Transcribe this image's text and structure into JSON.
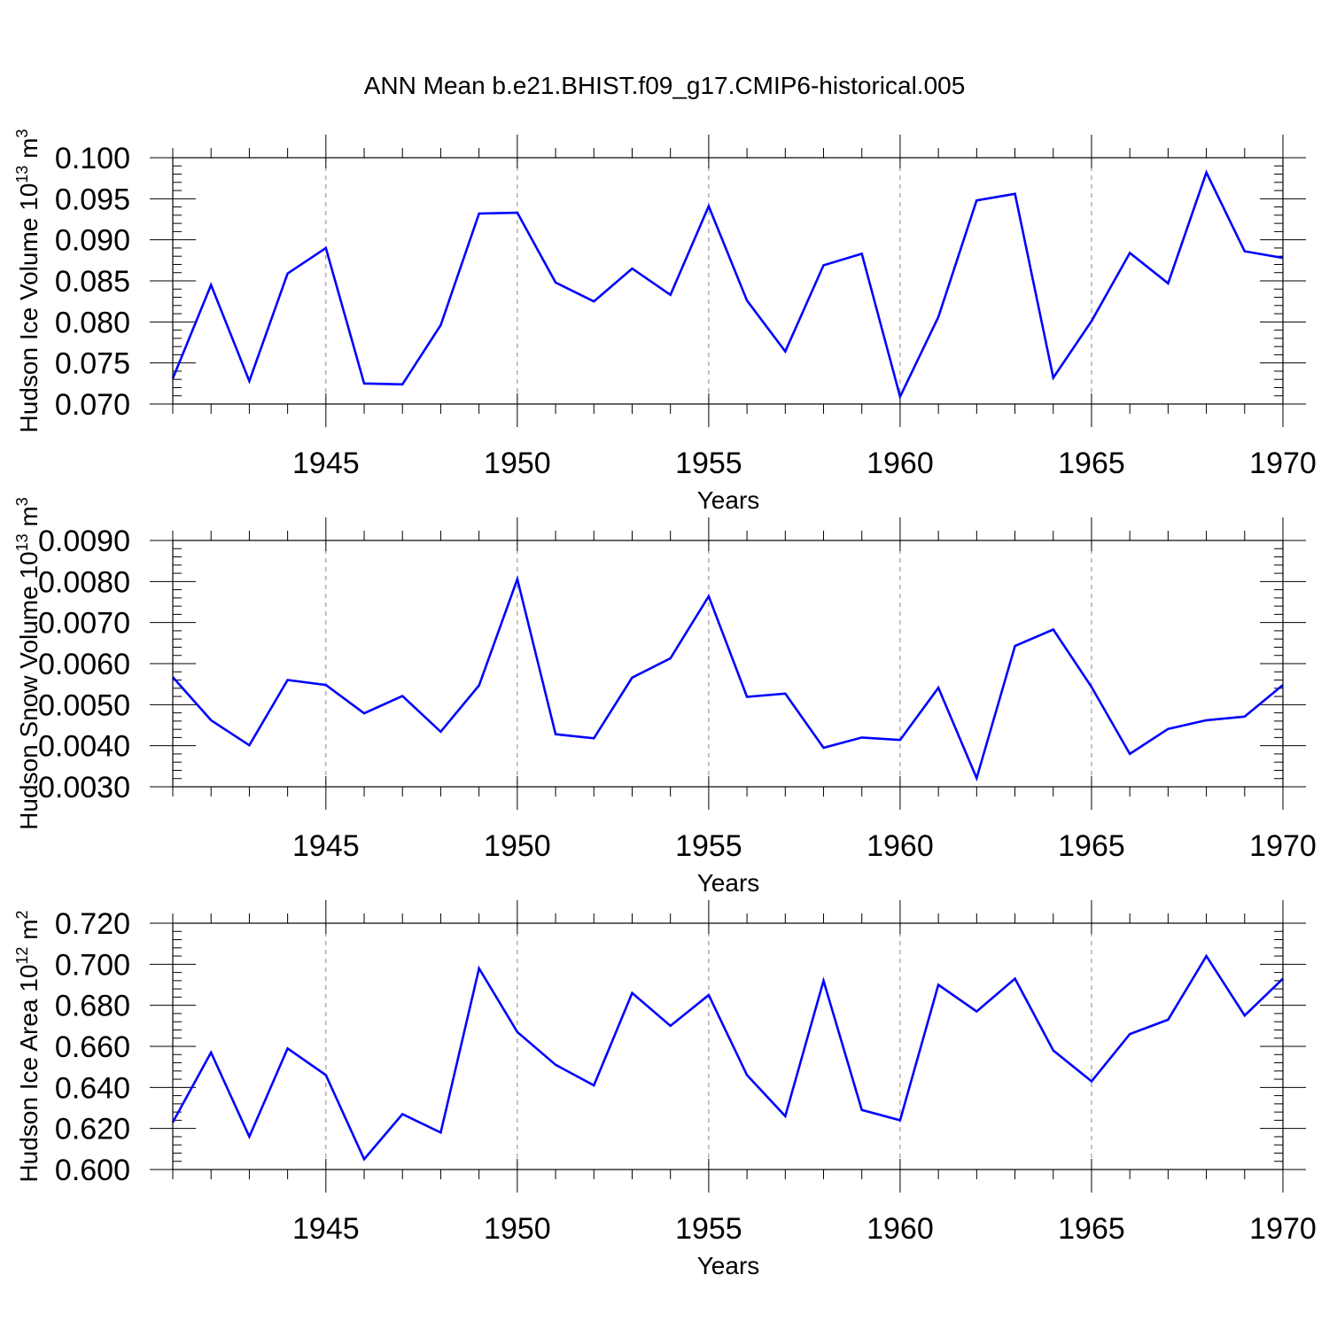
{
  "title": "ANN Mean b.e21.BHIST.f09_g17.CMIP6-historical.005",
  "line_color": "#0000FF",
  "chart_data": [
    {
      "type": "line",
      "name": "ice-volume",
      "ylabel": "Hudson Ice Volume 10",
      "ylabel_exp": "13",
      "ylabel_unit": " m",
      "ylabel_unit_exp": "3",
      "xlabel": "Years",
      "xlim": [
        1941,
        1970
      ],
      "ylim": [
        0.07,
        0.1
      ],
      "x_ticks": [
        1945,
        1950,
        1955,
        1960,
        1965,
        1970
      ],
      "y_ticks": [
        0.07,
        0.075,
        0.08,
        0.085,
        0.09,
        0.095,
        0.1
      ],
      "y_tick_labels": [
        "0.070",
        "0.075",
        "0.080",
        "0.085",
        "0.090",
        "0.095",
        "0.100"
      ],
      "x": [
        1941,
        1942,
        1943,
        1944,
        1945,
        1946,
        1947,
        1948,
        1949,
        1950,
        1951,
        1952,
        1953,
        1954,
        1955,
        1956,
        1957,
        1958,
        1959,
        1960,
        1961,
        1962,
        1963,
        1964,
        1965,
        1966,
        1967,
        1968,
        1969,
        1970
      ],
      "values": [
        0.0731,
        0.0845,
        0.0728,
        0.0859,
        0.089,
        0.0725,
        0.0724,
        0.0796,
        0.0932,
        0.0933,
        0.0848,
        0.0825,
        0.0865,
        0.0833,
        0.0941,
        0.0826,
        0.0764,
        0.0869,
        0.0883,
        0.0709,
        0.0806,
        0.0948,
        0.0956,
        0.0732,
        0.0801,
        0.0884,
        0.0847,
        0.0982,
        0.0886,
        0.0878
      ]
    },
    {
      "type": "line",
      "name": "snow-volume",
      "ylabel": "Hudson Snow Volume 10",
      "ylabel_exp": "13",
      "ylabel_unit": " m",
      "ylabel_unit_exp": "3",
      "xlabel": "Years",
      "xlim": [
        1941,
        1970
      ],
      "ylim": [
        0.003,
        0.009
      ],
      "x_ticks": [
        1945,
        1950,
        1955,
        1960,
        1965,
        1970
      ],
      "y_ticks": [
        0.003,
        0.004,
        0.005,
        0.006,
        0.007,
        0.008,
        0.009
      ],
      "y_tick_labels": [
        "0.0030",
        "0.0040",
        "0.0050",
        "0.0060",
        "0.0070",
        "0.0080",
        "0.0090"
      ],
      "x": [
        1941,
        1942,
        1943,
        1944,
        1945,
        1946,
        1947,
        1948,
        1949,
        1950,
        1951,
        1952,
        1953,
        1954,
        1955,
        1956,
        1957,
        1958,
        1959,
        1960,
        1961,
        1962,
        1963,
        1964,
        1965,
        1966,
        1967,
        1968,
        1969,
        1970
      ],
      "values": [
        0.00567,
        0.00462,
        0.00401,
        0.0056,
        0.00548,
        0.00479,
        0.00521,
        0.00434,
        0.00547,
        0.00806,
        0.00428,
        0.00418,
        0.00566,
        0.00613,
        0.00764,
        0.00519,
        0.00527,
        0.00395,
        0.0042,
        0.00414,
        0.00541,
        0.00321,
        0.00643,
        0.00683,
        0.00543,
        0.0038,
        0.00441,
        0.00462,
        0.00471,
        0.00548
      ]
    },
    {
      "type": "line",
      "name": "ice-area",
      "ylabel": "Hudson Ice Area 10",
      "ylabel_exp": "12",
      "ylabel_unit": " m",
      "ylabel_unit_exp": "2",
      "xlabel": "Years",
      "xlim": [
        1941,
        1970
      ],
      "ylim": [
        0.6,
        0.72
      ],
      "x_ticks": [
        1945,
        1950,
        1955,
        1960,
        1965,
        1970
      ],
      "y_ticks": [
        0.6,
        0.62,
        0.64,
        0.66,
        0.68,
        0.7,
        0.72
      ],
      "y_tick_labels": [
        "0.600",
        "0.620",
        "0.640",
        "0.660",
        "0.680",
        "0.700",
        "0.720"
      ],
      "x": [
        1941,
        1942,
        1943,
        1944,
        1945,
        1946,
        1947,
        1948,
        1949,
        1950,
        1951,
        1952,
        1953,
        1954,
        1955,
        1956,
        1957,
        1958,
        1959,
        1960,
        1961,
        1962,
        1963,
        1964,
        1965,
        1966,
        1967,
        1968,
        1969,
        1970
      ],
      "values": [
        0.623,
        0.657,
        0.616,
        0.659,
        0.646,
        0.605,
        0.627,
        0.618,
        0.698,
        0.667,
        0.651,
        0.641,
        0.686,
        0.67,
        0.685,
        0.646,
        0.626,
        0.692,
        0.629,
        0.624,
        0.69,
        0.677,
        0.693,
        0.658,
        0.643,
        0.666,
        0.673,
        0.704,
        0.675,
        0.693
      ]
    }
  ]
}
